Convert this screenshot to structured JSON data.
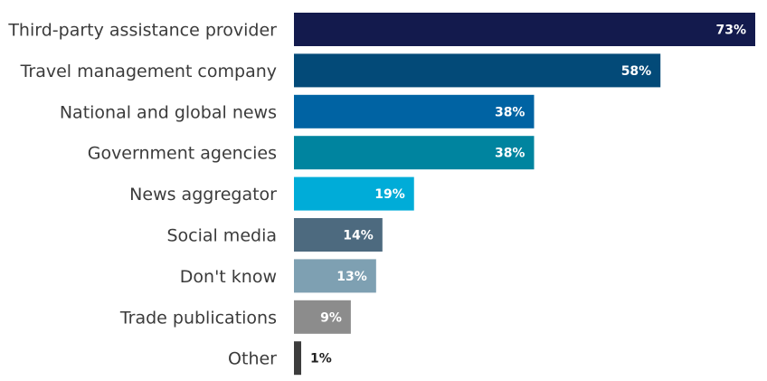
{
  "chart_data": {
    "type": "bar",
    "orientation": "horizontal",
    "title": "",
    "xlabel": "",
    "ylabel": "",
    "xlim": [
      0,
      73
    ],
    "grid": false,
    "legend": "none",
    "categories": [
      "Third-party assistance provider",
      "Travel management company",
      "National and global news",
      "Government agencies",
      "News aggregator",
      "Social media",
      "Don't know",
      "Trade publications",
      "Other"
    ],
    "values": [
      73,
      58,
      38,
      38,
      19,
      14,
      13,
      9,
      1
    ],
    "value_labels": [
      "73%",
      "58%",
      "38%",
      "38%",
      "19%",
      "14%",
      "13%",
      "9%",
      "1%"
    ],
    "colors": [
      "#131a4d",
      "#034a78",
      "#0063a3",
      "#00849f",
      "#00acd8",
      "#4d6a7f",
      "#7ea0b2",
      "#8c8c8c",
      "#3d3d3d"
    ]
  }
}
